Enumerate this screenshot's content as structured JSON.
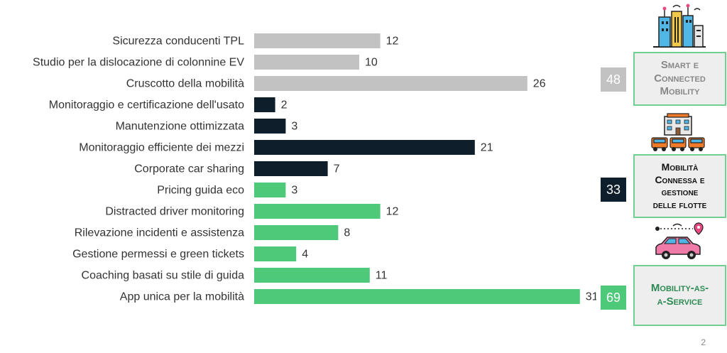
{
  "chart_data": {
    "type": "bar",
    "orientation": "horizontal",
    "categories": [
      "Sicurezza conducenti TPL",
      "Studio per la dislocazione di colonnine EV",
      "Cruscotto della mobilità",
      "Monitoraggio e certificazione dell'usato",
      "Manutenzione ottimizzata",
      "Monitoraggio efficiente dei mezzi",
      "Corporate car sharing",
      "Pricing guida eco",
      "Distracted driver monitoring",
      "Rilevazione incidenti e assistenza",
      "Gestione permessi e green tickets",
      "Coaching basati su stile di guida",
      "App unica per la mobilità"
    ],
    "values": [
      12,
      10,
      26,
      2,
      3,
      21,
      7,
      3,
      12,
      8,
      4,
      11,
      31
    ],
    "group_index": [
      0,
      0,
      0,
      1,
      1,
      1,
      1,
      2,
      2,
      2,
      2,
      2,
      2
    ],
    "xlim": [
      0,
      31
    ],
    "legend": false,
    "grid": false
  },
  "groups": [
    {
      "title": "Smart e\nConnected\nMobility",
      "total": "48",
      "color": "#c2c2c2",
      "title_color": "#888888",
      "icon": "smart-city-icon"
    },
    {
      "title": "Mobilità\nConnessa e\ngestione\ndelle flotte",
      "total": "33",
      "color": "#0e1e2a",
      "title_color": "#111111",
      "icon": "fleet-building-icon"
    },
    {
      "title": "Mobility-as-\na-Service",
      "total": "69",
      "color": "#4ec97a",
      "title_color": "#2e8a55",
      "icon": "connected-car-icon"
    }
  ],
  "page_number": "2"
}
